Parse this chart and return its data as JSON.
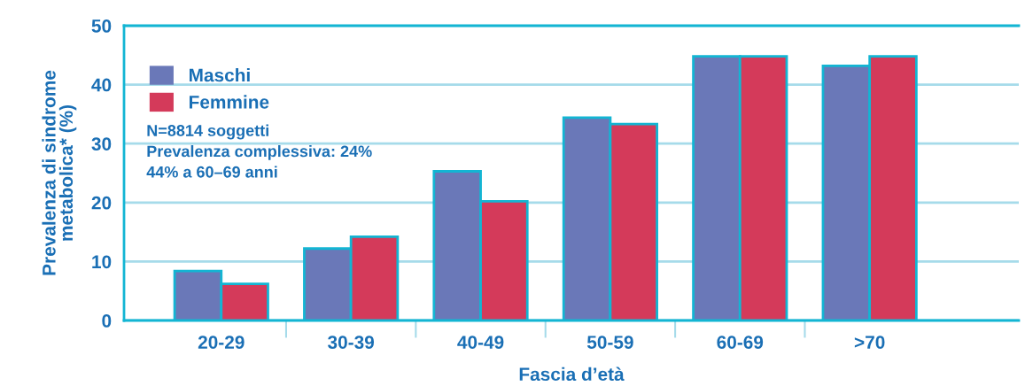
{
  "chart_data": {
    "type": "bar",
    "xlabel": "Fascia d’età",
    "ylabel": "Prevalenza di sindrome\nmetabolica* (%)",
    "categories": [
      "20-29",
      "30-39",
      "40-49",
      "50-59",
      "60-69",
      ">70"
    ],
    "series": [
      {
        "name": "Maschi",
        "color": "#6a78b8",
        "values": [
          8.4,
          12.2,
          25.3,
          34.4,
          44.8,
          43.2
        ]
      },
      {
        "name": "Femmine",
        "color": "#d43a5a",
        "values": [
          6.2,
          14.2,
          20.2,
          33.3,
          44.8,
          44.8
        ]
      }
    ],
    "ylim": [
      0,
      50
    ],
    "yticks": [
      0,
      10,
      20,
      30,
      40,
      50
    ],
    "grid": "y",
    "legend": "top left",
    "annotations": [
      "N=8814 soggetti\nPrevalenza complessiva: 24%\n44% a 60–69 anni"
    ]
  }
}
